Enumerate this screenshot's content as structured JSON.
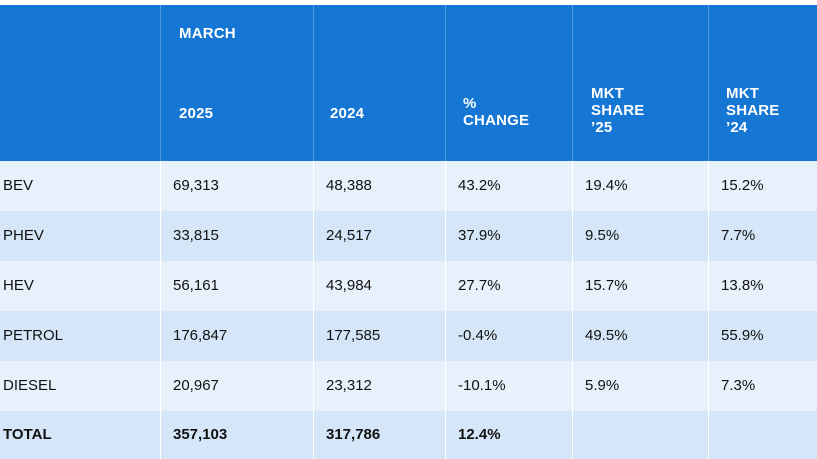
{
  "header": {
    "group_label": "MARCH",
    "columns": [
      "",
      "2025",
      "2024",
      "%\nCHANGE",
      "MKT\nSHARE\n’25",
      "MKT\nSHARE\n’24"
    ]
  },
  "rows": [
    [
      "BEV",
      "69,313",
      "48,388",
      "43.2%",
      "19.4%",
      "15.2%"
    ],
    [
      "PHEV",
      "33,815",
      "24,517",
      "37.9%",
      "9.5%",
      "7.7%"
    ],
    [
      "HEV",
      "56,161",
      "43,984",
      "27.7%",
      "15.7%",
      "13.8%"
    ],
    [
      "PETROL",
      "176,847",
      "177,585",
      "-0.4%",
      "49.5%",
      "55.9%"
    ],
    [
      "DIESEL",
      "20,967",
      "23,312",
      "-10.1%",
      "5.9%",
      "7.3%"
    ],
    [
      "TOTAL",
      "357,103",
      "317,786",
      "12.4%",
      "",
      ""
    ]
  ],
  "colors": {
    "header_bg": "#1577d3",
    "row_light": "#e7f1fb",
    "row_dark": "#d4e6f7"
  }
}
